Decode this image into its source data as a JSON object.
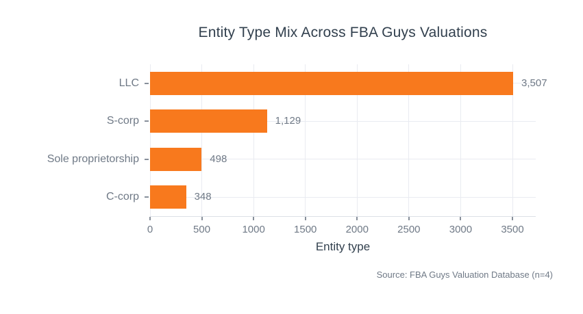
{
  "chart_data": {
    "type": "bar",
    "orientation": "horizontal",
    "title": "Entity Type Mix Across FBA Guys Valuations",
    "xlabel": "Entity type",
    "categories": [
      "LLC",
      "S-corp",
      "Sole proprietorship",
      "C-corp"
    ],
    "values": [
      3507,
      1129,
      498,
      348
    ],
    "value_labels": [
      "3,507",
      "1,129",
      "498",
      "348"
    ],
    "x_ticks": [
      0,
      500,
      1000,
      1500,
      2000,
      2500,
      3000,
      3500
    ],
    "x_tick_labels": [
      "0",
      "500",
      "1000",
      "1500",
      "2000",
      "2500",
      "3000",
      "3500"
    ],
    "xlim": [
      0,
      3725
    ],
    "grid": true,
    "legend": "none",
    "source": "Source: FBA Guys Valuation Database (n=4)",
    "colors": {
      "bar": "#F8791D",
      "title_text": "#32404E",
      "muted_text": "#6F7986",
      "gridline": "#E9EBF1",
      "axis_line": "#DCE0E6",
      "tick_mark": "#878F9A",
      "background": "#FFFFFF"
    }
  }
}
